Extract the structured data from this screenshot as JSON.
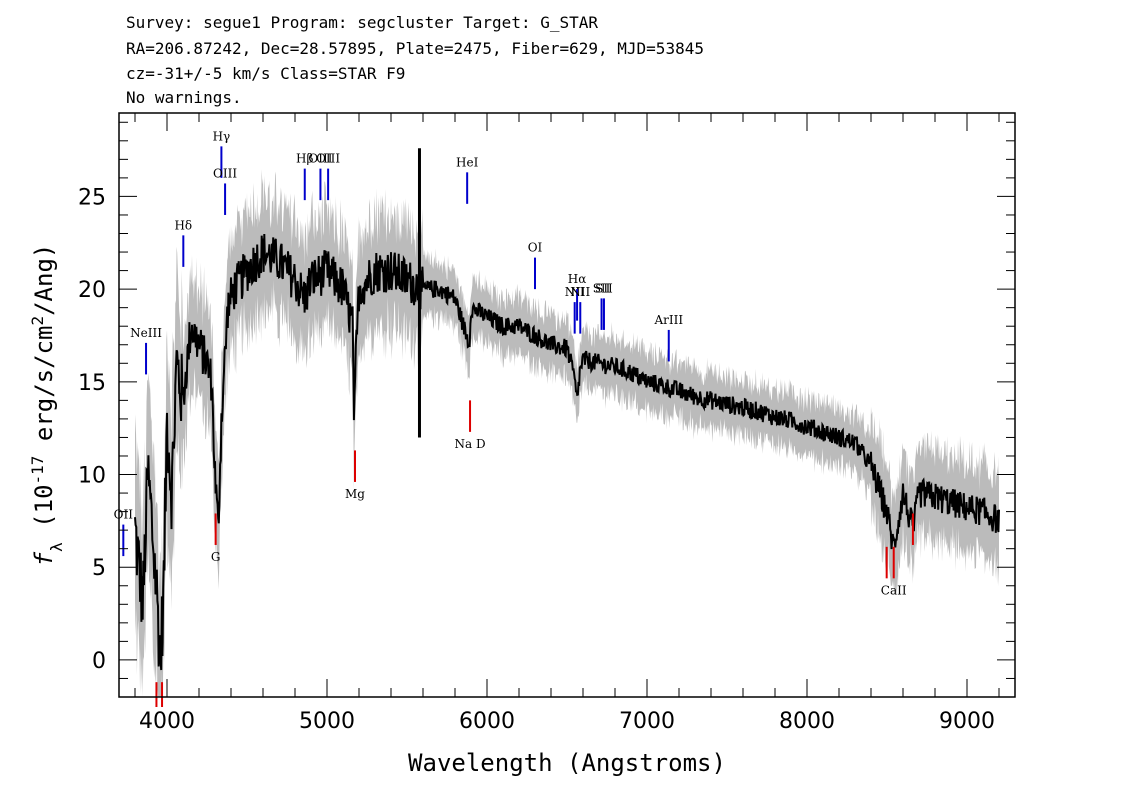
{
  "header": {
    "line1": "Survey: segue1 Program: segcluster Target: G_STAR",
    "line2": "RA=206.87242, Dec=28.57895, Plate=2475, Fiber=629, MJD=53845",
    "line3": "cz=-31+/-5 km/s Class=STAR F9",
    "line4": "No warnings."
  },
  "chart_data": {
    "type": "line",
    "xlabel": "Wavelength (Angstroms)",
    "ylabel": "f_λ (10^-17 erg/s/cm^2/Ang)",
    "xlim": [
      3700,
      9300
    ],
    "ylim": [
      -2,
      29.5
    ],
    "x_ticks": [
      4000,
      5000,
      6000,
      7000,
      8000,
      9000
    ],
    "y_ticks": [
      0,
      5,
      10,
      15,
      20,
      25
    ],
    "grid": false,
    "colors": {
      "spectrum": "#000000",
      "error_band": "#bbbbbb",
      "emission": "#0000cc",
      "absorption": "#dd0000"
    },
    "spectrum": {
      "x": [
        3800,
        3850,
        3880,
        3900,
        3940,
        3960,
        3980,
        4000,
        4030,
        4060,
        4100,
        4150,
        4200,
        4250,
        4280,
        4300,
        4320,
        4340,
        4380,
        4420,
        4500,
        4600,
        4700,
        4800,
        4860,
        4900,
        5000,
        5100,
        5160,
        5170,
        5180,
        5200,
        5300,
        5400,
        5500,
        5600,
        5700,
        5800,
        5890,
        5900,
        6000,
        6100,
        6200,
        6300,
        6400,
        6500,
        6540,
        6563,
        6580,
        6600,
        6700,
        6800,
        6900,
        7000,
        7100,
        7200,
        7300,
        7400,
        7500,
        7600,
        7700,
        7800,
        7900,
        8000,
        8100,
        8200,
        8300,
        8400,
        8498,
        8542,
        8600,
        8662,
        8700,
        8800,
        8900,
        9000,
        9100,
        9200
      ],
      "y": [
        7,
        3,
        10,
        8,
        3,
        0,
        4,
        13,
        9,
        16,
        14,
        18,
        17,
        16,
        15,
        10,
        7,
        13,
        19,
        20,
        21,
        22,
        21.5,
        20.5,
        19.5,
        20.5,
        21,
        20,
        18,
        12.5,
        16,
        20,
        21,
        21,
        20.5,
        20,
        20,
        19.5,
        17,
        19,
        18.5,
        18,
        18,
        17.5,
        17,
        16.8,
        15.5,
        14,
        15.5,
        16.2,
        16,
        15.8,
        15.5,
        15,
        14.8,
        14.5,
        14.2,
        14,
        13.8,
        13.6,
        13.4,
        13.1,
        12.9,
        12.6,
        12.3,
        12,
        11.7,
        10.5,
        8,
        6,
        9,
        7,
        9,
        8.8,
        8.5,
        8.2,
        8,
        7.5
      ]
    },
    "annotations": [
      {
        "label": "OII",
        "x": 3727,
        "y_bottom": 5.6,
        "y_top": 7.3,
        "kind": "emission"
      },
      {
        "label": "NeIII",
        "x": 3869,
        "y_bottom": 15.4,
        "y_top": 17.1,
        "kind": "emission"
      },
      {
        "label": "Hδ",
        "x": 4102,
        "y_bottom": 21.2,
        "y_top": 22.9,
        "kind": "emission"
      },
      {
        "label": "Hγ",
        "x": 4340,
        "y_bottom": 26,
        "y_top": 27.7,
        "kind": "emission"
      },
      {
        "label": "OIII",
        "x": 4363,
        "y_bottom": 24,
        "y_top": 25.7,
        "kind": "emission"
      },
      {
        "label": "Hβ",
        "x": 4861,
        "y_bottom": 24.8,
        "y_top": 26.5,
        "kind": "emission"
      },
      {
        "label": "OIII",
        "x": 4959,
        "y_bottom": 24.8,
        "y_top": 26.5,
        "kind": "emission"
      },
      {
        "label": "OIII",
        "x": 5007,
        "y_bottom": 24.8,
        "y_top": 26.5,
        "kind": "emission"
      },
      {
        "label": "HeI",
        "x": 5876,
        "y_bottom": 24.6,
        "y_top": 26.3,
        "kind": "emission"
      },
      {
        "label": "OI",
        "x": 6300,
        "y_bottom": 20,
        "y_top": 21.7,
        "kind": "emission"
      },
      {
        "label": "NII",
        "x": 6548,
        "y_bottom": 17.6,
        "y_top": 19.3,
        "kind": "emission"
      },
      {
        "label": "Hα",
        "x": 6563,
        "y_bottom": 18.3,
        "y_top": 20,
        "kind": "emission"
      },
      {
        "label": "NII",
        "x": 6583,
        "y_bottom": 17.6,
        "y_top": 19.3,
        "kind": "emission"
      },
      {
        "label": "SII",
        "x": 6716,
        "y_bottom": 17.8,
        "y_top": 19.5,
        "kind": "emission"
      },
      {
        "label": "SII",
        "x": 6731,
        "y_bottom": 17.8,
        "y_top": 19.5,
        "kind": "emission"
      },
      {
        "label": "ArIII",
        "x": 7136,
        "y_bottom": 16.1,
        "y_top": 17.8,
        "kind": "emission"
      },
      {
        "label": "",
        "x": 3934,
        "y_bottom": -3,
        "y_top": -1.2,
        "kind": "absorption"
      },
      {
        "label": "",
        "x": 3969,
        "y_bottom": -3,
        "y_top": -1.2,
        "kind": "absorption"
      },
      {
        "label": "G",
        "x": 4304,
        "y_bottom": 6.2,
        "y_top": 7.9,
        "kind": "absorption"
      },
      {
        "label": "Mg",
        "x": 5175,
        "y_bottom": 9.6,
        "y_top": 11.3,
        "kind": "absorption"
      },
      {
        "label": "Na D",
        "x": 5894,
        "y_bottom": 12.3,
        "y_top": 14,
        "kind": "absorption"
      },
      {
        "label": "",
        "x": 8498,
        "y_bottom": 4.4,
        "y_top": 6.1,
        "kind": "absorption"
      },
      {
        "label": "CaII",
        "x": 8542,
        "y_bottom": 4.4,
        "y_top": 6.1,
        "kind": "absorption"
      },
      {
        "label": "",
        "x": 8662,
        "y_bottom": 6.2,
        "y_top": 7.9,
        "kind": "absorption"
      }
    ]
  }
}
